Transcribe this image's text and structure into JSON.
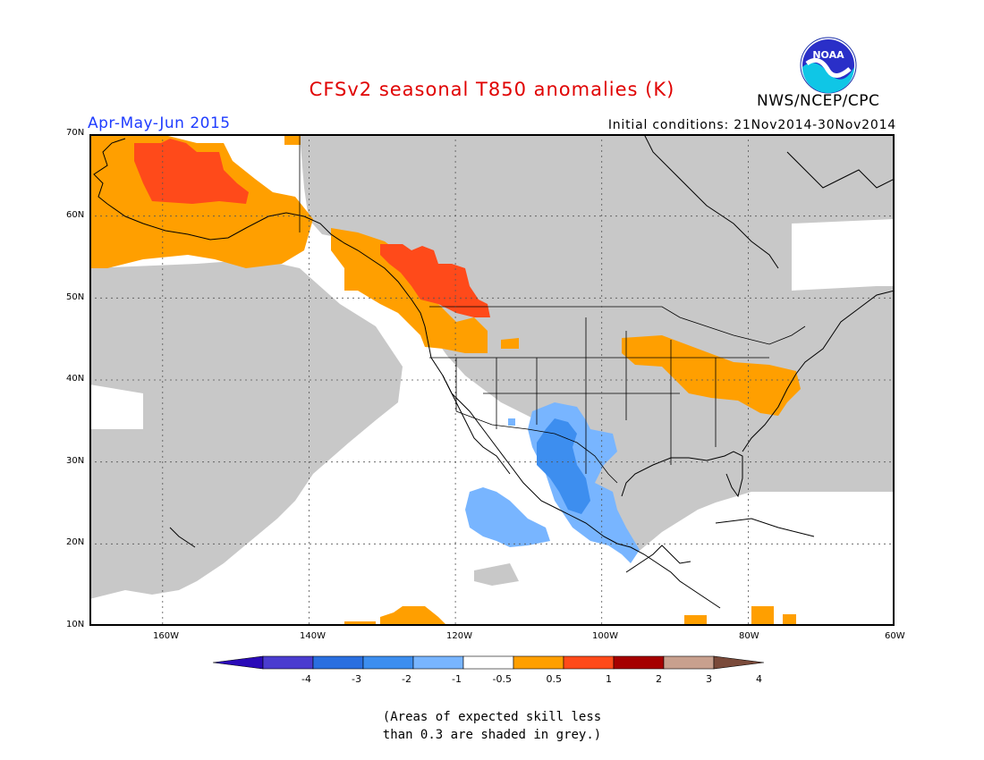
{
  "header": {
    "title": "CFSv2 seasonal T850 anomalies (K)",
    "period": "Apr-May-Jun 2015",
    "initial_conditions": "Initial conditions: 21Nov2014-30Nov2014",
    "agency": "NWS/NCEP/CPC",
    "logo_text": "NOAA"
  },
  "map": {
    "extent": {
      "lon_min": -170,
      "lon_max": -60,
      "lat_min": 10,
      "lat_max": 70
    },
    "lat_labels": [
      "70N",
      "60N",
      "50N",
      "40N",
      "30N",
      "20N",
      "10N"
    ],
    "lon_labels": [
      "160W",
      "140W",
      "120W",
      "100W",
      "80W",
      "60W"
    ],
    "grid_lats": [
      20,
      30,
      40,
      50,
      60
    ],
    "grid_lons": [
      -160,
      -140,
      -120,
      -100,
      -80
    ],
    "colors": {
      "grey": "#c8c8c8",
      "orange": "#ff9f00",
      "red_orange": "#ff4a1a",
      "light_blue": "#78b5ff",
      "mid_blue": "#3d8eef",
      "land_line": "#000000",
      "frame": "#000000"
    },
    "anomaly_regions": [
      {
        "category": "0.5 to 1",
        "area": "Alaska"
      },
      {
        "category": "1 to 2",
        "area": "Western Alaska"
      },
      {
        "category": "0.5 to 1",
        "area": "Pacific Northwest and British Columbia"
      },
      {
        "category": "1 to 2",
        "area": "Southern British Columbia"
      },
      {
        "category": "0.5 to 1",
        "area": "Ohio Valley to Mid-Atlantic"
      },
      {
        "category": "-1 to -0.5",
        "area": "Southwest US and Northern Mexico"
      },
      {
        "category": "-2 to -1",
        "area": "Northern Mexico Sierra Madre"
      },
      {
        "category": "0.5 to 1",
        "area": "Tropical Eastern Pacific"
      }
    ]
  },
  "colorbar": {
    "labels": [
      "-4",
      "-3",
      "-2",
      "-1",
      "-0.5",
      "0.5",
      "1",
      "2",
      "3",
      "4"
    ],
    "colors": [
      "#2a0ab8",
      "#4a3ccf",
      "#2a6fe0",
      "#3d8eef",
      "#78b5ff",
      "#ffffff",
      "#ff9f00",
      "#ff4a1a",
      "#a50000",
      "#c8a08e",
      "#7a4a3a"
    ]
  },
  "footnote": {
    "line1": "(Areas of expected skill less",
    "line2": "than 0.3 are shaded in grey.)"
  }
}
